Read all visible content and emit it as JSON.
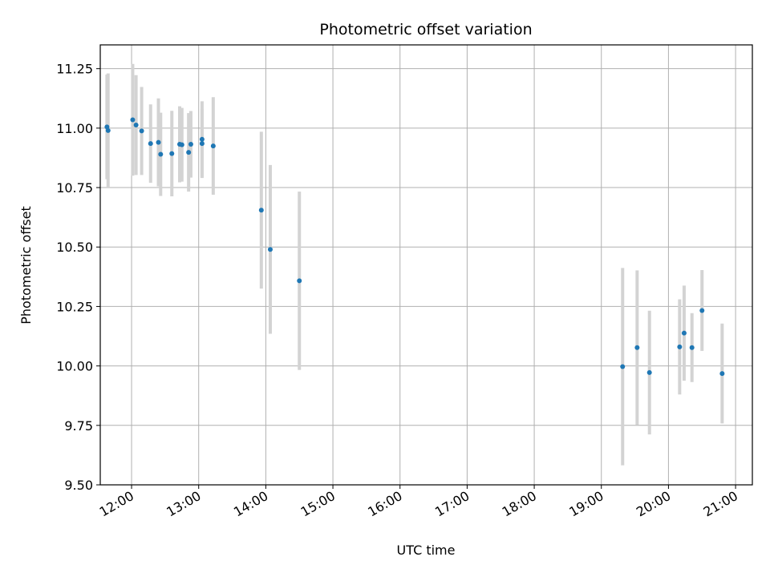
{
  "chart_data": {
    "type": "scatter",
    "title": "Photometric offset variation",
    "xlabel": "UTC time",
    "ylabel": "Photometric offset",
    "x_ticks": [
      "12:00",
      "13:00",
      "14:00",
      "15:00",
      "16:00",
      "17:00",
      "18:00",
      "19:00",
      "20:00",
      "21:00"
    ],
    "y_ticks": [
      "9.50",
      "9.75",
      "10.00",
      "10.25",
      "10.50",
      "10.75",
      "11.00",
      "11.25"
    ],
    "xlim": [
      "11:32",
      "21:15"
    ],
    "ylim": [
      9.5,
      11.35
    ],
    "grid": true,
    "marker_color": "#1f77b4",
    "errorbar_color": "#d3d3d3",
    "points": [
      {
        "time": "11:38",
        "y": 11.005,
        "err": 0.22
      },
      {
        "time": "11:39",
        "y": 10.99,
        "err": 0.24
      },
      {
        "time": "12:01",
        "y": 11.035,
        "err": 0.235
      },
      {
        "time": "12:04",
        "y": 11.013,
        "err": 0.21
      },
      {
        "time": "12:09",
        "y": 10.988,
        "err": 0.185
      },
      {
        "time": "12:17",
        "y": 10.935,
        "err": 0.165
      },
      {
        "time": "12:24",
        "y": 10.94,
        "err": 0.185
      },
      {
        "time": "12:26",
        "y": 10.89,
        "err": 0.175
      },
      {
        "time": "12:36",
        "y": 10.893,
        "err": 0.18
      },
      {
        "time": "12:43",
        "y": 10.932,
        "err": 0.16
      },
      {
        "time": "12:45",
        "y": 10.93,
        "err": 0.155
      },
      {
        "time": "12:51",
        "y": 10.898,
        "err": 0.165
      },
      {
        "time": "12:53",
        "y": 10.932,
        "err": 0.14
      },
      {
        "time": "13:03",
        "y": 10.953,
        "err": 0.16
      },
      {
        "time": "13:03",
        "y": 10.935,
        "err": 0.145
      },
      {
        "time": "13:13",
        "y": 10.925,
        "err": 0.205
      },
      {
        "time": "13:56",
        "y": 10.655,
        "err": 0.33
      },
      {
        "time": "14:04",
        "y": 10.49,
        "err": 0.355
      },
      {
        "time": "14:30",
        "y": 10.358,
        "err": 0.375
      },
      {
        "time": "19:19",
        "y": 9.997,
        "err": 0.415
      },
      {
        "time": "19:32",
        "y": 10.077,
        "err": 0.325
      },
      {
        "time": "19:43",
        "y": 9.972,
        "err": 0.26
      },
      {
        "time": "20:10",
        "y": 10.08,
        "err": 0.2
      },
      {
        "time": "20:14",
        "y": 10.138,
        "err": 0.2
      },
      {
        "time": "20:21",
        "y": 10.077,
        "err": 0.145
      },
      {
        "time": "20:30",
        "y": 10.233,
        "err": 0.17
      },
      {
        "time": "20:48",
        "y": 9.968,
        "err": 0.21
      }
    ]
  }
}
